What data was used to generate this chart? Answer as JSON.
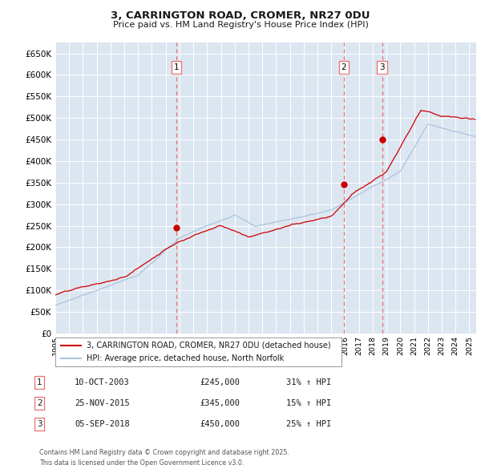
{
  "title_line1": "3, CARRINGTON ROAD, CROMER, NR27 0DU",
  "title_line2": "Price paid vs. HM Land Registry's House Price Index (HPI)",
  "ylim": [
    0,
    675000
  ],
  "yticks": [
    0,
    50000,
    100000,
    150000,
    200000,
    250000,
    300000,
    350000,
    400000,
    450000,
    500000,
    550000,
    600000,
    650000
  ],
  "ytick_labels": [
    "£0",
    "£50K",
    "£100K",
    "£150K",
    "£200K",
    "£250K",
    "£300K",
    "£350K",
    "£400K",
    "£450K",
    "£500K",
    "£550K",
    "£600K",
    "£650K"
  ],
  "background_color": "#ffffff",
  "plot_bg_color": "#dce6f1",
  "grid_color": "#ffffff",
  "hpi_color": "#aac4e0",
  "price_color": "#cc0000",
  "vline_color": "#e87070",
  "sale_events": [
    {
      "date_num": 2003.78,
      "price": 245000,
      "label": "1",
      "date_str": "10-OCT-2003",
      "pct": "31% ↑ HPI"
    },
    {
      "date_num": 2015.9,
      "price": 345000,
      "label": "2",
      "date_str": "25-NOV-2015",
      "pct": "15% ↑ HPI"
    },
    {
      "date_num": 2018.68,
      "price": 450000,
      "label": "3",
      "date_str": "05-SEP-2018",
      "pct": "25% ↑ HPI"
    }
  ],
  "legend_line1": "3, CARRINGTON ROAD, CROMER, NR27 0DU (detached house)",
  "legend_line2": "HPI: Average price, detached house, North Norfolk",
  "footnote": "Contains HM Land Registry data © Crown copyright and database right 2025.\nThis data is licensed under the Open Government Licence v3.0."
}
